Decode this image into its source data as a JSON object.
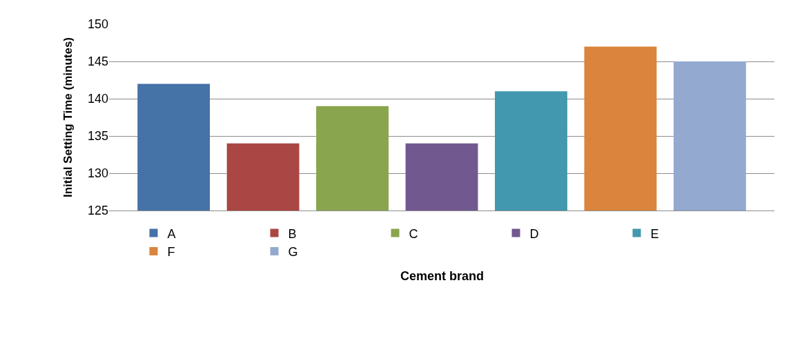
{
  "chart_data": {
    "type": "bar",
    "xlabel": "Cement brand",
    "ylabel": "Initial Setting Time (minutes)",
    "categories": [
      null
    ],
    "series": [
      {
        "name": "A",
        "color": "#4572a7",
        "values": [
          142
        ]
      },
      {
        "name": "B",
        "color": "#aa4643",
        "values": [
          134
        ]
      },
      {
        "name": "C",
        "color": "#89a54e",
        "values": [
          139
        ]
      },
      {
        "name": "D",
        "color": "#71588f",
        "values": [
          134
        ]
      },
      {
        "name": "E",
        "color": "#4198af",
        "values": [
          141
        ]
      },
      {
        "name": "F",
        "color": "#db843d",
        "values": [
          147
        ]
      },
      {
        "name": "G",
        "color": "#93a9cf",
        "values": [
          145
        ]
      }
    ],
    "ylim": [
      125,
      150
    ],
    "yticks": [
      125,
      130,
      135,
      140,
      145,
      150
    ],
    "grid": "y",
    "legend": "bottom",
    "tick_labels": "y"
  }
}
